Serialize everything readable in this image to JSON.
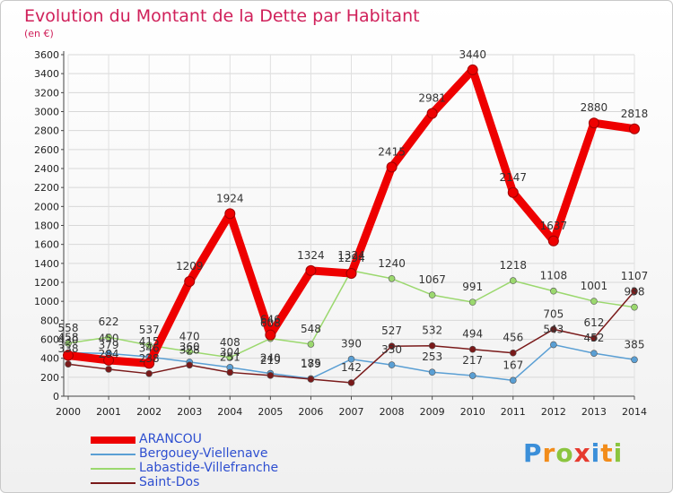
{
  "title": "Evolution du Montant de la Dette par Habitant",
  "subtitle": "(en €)",
  "logo": {
    "text": [
      "P",
      "r",
      "o",
      "x",
      "i",
      "t",
      "i"
    ],
    "colors": [
      "#3b8fd9",
      "#f28c1a",
      "#8bc53f",
      "#e63a2e",
      "#3b8fd9",
      "#f28c1a",
      "#8bc53f"
    ]
  },
  "chart_data": {
    "type": "line",
    "categories": [
      "2000",
      "2001",
      "2002",
      "2003",
      "2004",
      "2005",
      "2006",
      "2007",
      "2008",
      "2009",
      "2010",
      "2011",
      "2012",
      "2013",
      "2014"
    ],
    "ylim": [
      0,
      3600
    ],
    "yticks": [
      0,
      200,
      400,
      600,
      800,
      1000,
      1200,
      1400,
      1600,
      1800,
      2000,
      2200,
      2400,
      2600,
      2800,
      3000,
      3200,
      3400,
      3600
    ],
    "grid": true,
    "legend_position": "bottom-left",
    "series": [
      {
        "name": "ARANCOU",
        "color": "#ee0000",
        "values": [
          430,
          379,
          346,
          1209,
          1924,
          646,
          1324,
          1294,
          2415,
          2981,
          3440,
          2147,
          1637,
          2880,
          2818
        ],
        "labels": [
          "430",
          "379",
          "346",
          "1209",
          "1924",
          "646",
          "1324",
          "1294",
          "2415",
          "2981",
          "3440",
          "2147",
          "1637",
          "2880",
          "2818"
        ]
      },
      {
        "name": "Bergouey-Viellenave",
        "color": "#5a9fd4",
        "values": [
          458,
          450,
          415,
          360,
          304,
          240,
          185,
          390,
          330,
          253,
          217,
          167,
          543,
          452,
          385
        ],
        "labels": [
          "458",
          "450",
          "415",
          "360",
          "304",
          "240",
          "185",
          "390",
          "330",
          "253",
          "217",
          "167",
          "543",
          "452",
          "385"
        ]
      },
      {
        "name": "Labastide-Villefranche",
        "color": "#9bd86e",
        "values": [
          558,
          622,
          537,
          470,
          408,
          608,
          548,
          1324,
          1240,
          1067,
          991,
          1218,
          1108,
          1001,
          938
        ],
        "labels": [
          "558",
          "622",
          "537",
          "470",
          "408",
          "608",
          "548",
          "1324",
          "1240",
          "1067",
          "991",
          "1218",
          "1108",
          "1001",
          "938"
        ]
      },
      {
        "name": "Saint-Dos",
        "color": "#7a1a1a",
        "values": [
          338,
          284,
          238,
          328,
          251,
          219,
          179,
          142,
          527,
          532,
          494,
          456,
          705,
          612,
          1107
        ],
        "labels": [
          "338",
          "284",
          "238",
          "328",
          "251",
          "219",
          "179",
          "142",
          "527",
          "532",
          "494",
          "456",
          "705",
          "612",
          "1107"
        ]
      }
    ]
  }
}
